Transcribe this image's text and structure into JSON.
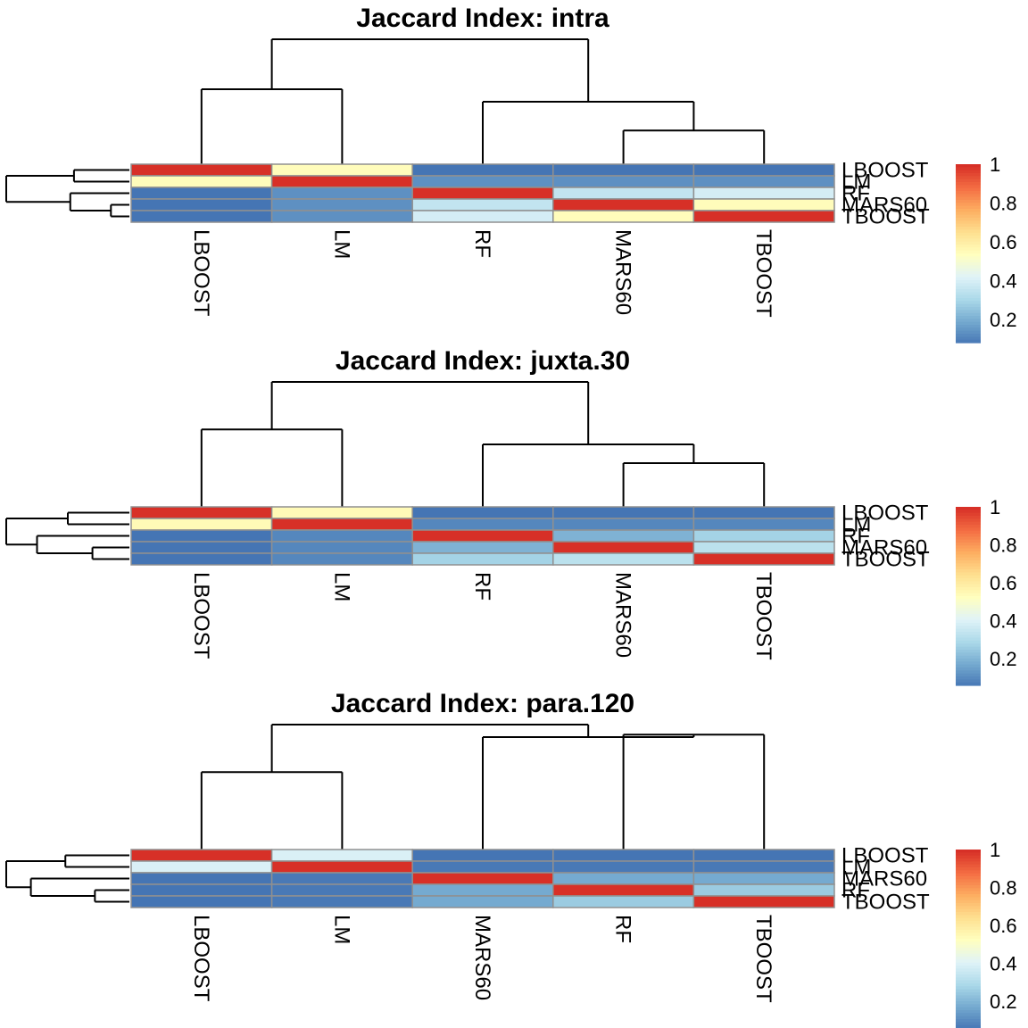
{
  "colors": {
    "scale": [
      "#4575b4",
      "#74a9cf",
      "#abd9e9",
      "#e0f3f8",
      "#ffffbf",
      "#fee090",
      "#fdae61",
      "#f46d43",
      "#d73027"
    ],
    "cell_border": "#909090",
    "dendrogram": "#000000"
  },
  "chart_data": [
    {
      "type": "heatmap",
      "title": "Jaccard Index: intra",
      "rows": [
        "LBOOST",
        "LM",
        "RF",
        "MARS60",
        "TBOOST"
      ],
      "columns": [
        "LBOOST",
        "LM",
        "RF",
        "MARS60",
        "TBOOST"
      ],
      "values": [
        [
          1.0,
          0.55,
          0.08,
          0.08,
          0.08
        ],
        [
          0.55,
          1.0,
          0.14,
          0.14,
          0.14
        ],
        [
          0.08,
          0.14,
          1.0,
          0.36,
          0.4
        ],
        [
          0.08,
          0.14,
          0.36,
          1.0,
          0.55
        ],
        [
          0.08,
          0.14,
          0.4,
          0.55,
          1.0
        ]
      ],
      "legend": {
        "ticks": [
          "0.2",
          "0.4",
          "0.6",
          "0.8",
          "1"
        ],
        "tick_values": [
          0.2,
          0.4,
          0.6,
          0.8,
          1.0
        ],
        "range": [
          0.08,
          1.0
        ]
      },
      "col_tree": {
        "heights": {
          "a": 0.6,
          "b": 0.27,
          "c": 0.5,
          "d": 1.0
        }
      },
      "row_tree": {
        "heights": {
          "a": 0.45,
          "b": 0.15,
          "c": 0.48,
          "d": 1.0
        }
      }
    },
    {
      "type": "heatmap",
      "title": "Jaccard Index: juxta.30",
      "rows": [
        "LBOOST",
        "LM",
        "RF",
        "MARS60",
        "TBOOST"
      ],
      "columns": [
        "LBOOST",
        "LM",
        "RF",
        "MARS60",
        "TBOOST"
      ],
      "values": [
        [
          1.0,
          0.55,
          0.06,
          0.06,
          0.06
        ],
        [
          0.55,
          1.0,
          0.1,
          0.1,
          0.1
        ],
        [
          0.06,
          0.1,
          1.0,
          0.2,
          0.28
        ],
        [
          0.06,
          0.1,
          0.2,
          1.0,
          0.33
        ],
        [
          0.06,
          0.1,
          0.28,
          0.33,
          1.0
        ]
      ],
      "legend": {
        "ticks": [
          "0.2",
          "0.4",
          "0.6",
          "0.8",
          "1"
        ],
        "tick_values": [
          0.2,
          0.4,
          0.6,
          0.8,
          1.0
        ],
        "range": [
          0.06,
          1.0
        ]
      },
      "col_tree": {
        "heights": {
          "a": 0.62,
          "b": 0.35,
          "c": 0.5,
          "d": 1.0
        }
      },
      "row_tree": {
        "heights": {
          "a": 0.5,
          "b": 0.3,
          "c": 0.75,
          "d": 1.0
        }
      }
    },
    {
      "type": "heatmap",
      "title": "Jaccard Index: para.120",
      "rows": [
        "LBOOST",
        "LM",
        "MARS60",
        "RF",
        "TBOOST"
      ],
      "columns": [
        "LBOOST",
        "LM",
        "MARS60",
        "RF",
        "TBOOST"
      ],
      "values": [
        [
          1.0,
          0.4,
          0.06,
          0.06,
          0.06
        ],
        [
          0.4,
          1.0,
          0.07,
          0.07,
          0.07
        ],
        [
          0.06,
          0.07,
          1.0,
          0.18,
          0.18
        ],
        [
          0.06,
          0.07,
          0.18,
          1.0,
          0.26
        ],
        [
          0.06,
          0.07,
          0.18,
          0.26,
          1.0
        ]
      ],
      "legend": {
        "ticks": [
          "0.2",
          "0.4",
          "0.6",
          "0.8",
          "1"
        ],
        "tick_values": [
          0.2,
          0.4,
          0.6,
          0.8,
          1.0
        ],
        "range": [
          0.06,
          1.0
        ]
      },
      "col_tree": {
        "heights": {
          "a": 0.62,
          "b": 0.92,
          "c": 0.9,
          "d": 1.0
        }
      },
      "row_tree": {
        "heights": {
          "a": 0.52,
          "b": 0.28,
          "c": 0.8,
          "d": 1.0
        }
      }
    }
  ]
}
